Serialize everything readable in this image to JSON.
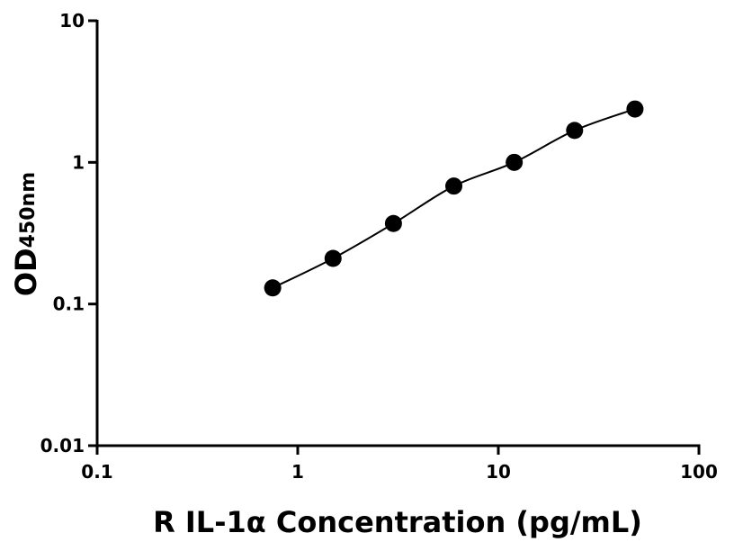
{
  "chart_data": {
    "type": "scatter",
    "xlabel": "R IL-1α Concentration (pg/mL)",
    "ylabel": "OD",
    "ylabel_sub": "450nm",
    "x": [
      0.75,
      1.5,
      3,
      6,
      12,
      24,
      48
    ],
    "series": [
      {
        "color": "#000000",
        "values": [
          0.13,
          0.21,
          0.37,
          0.68,
          1.0,
          1.68,
          2.38
        ]
      }
    ],
    "xlim": [
      0.1,
      100
    ],
    "ylim": [
      0.01,
      10
    ],
    "xticks": [
      0.1,
      1,
      10,
      100
    ],
    "yticks": [
      0.01,
      0.1,
      1,
      10
    ],
    "xscale": "log",
    "yscale": "log"
  }
}
